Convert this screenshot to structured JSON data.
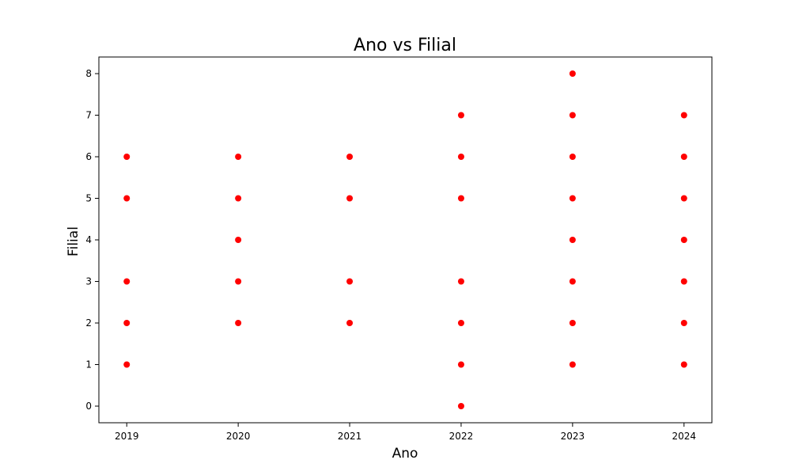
{
  "chart_data": {
    "type": "scatter",
    "title": "Ano vs Filial",
    "xlabel": "Ano",
    "ylabel": "Filial",
    "x_ticks": [
      "2019",
      "2020",
      "2021",
      "2022",
      "2023",
      "2024"
    ],
    "y_ticks": [
      "0",
      "1",
      "2",
      "3",
      "4",
      "5",
      "6",
      "7",
      "8"
    ],
    "xlim": [
      2018.75,
      2024.25
    ],
    "ylim": [
      -0.4,
      8.4
    ],
    "grid": false,
    "color": "#ff0000",
    "points": [
      {
        "x": 2019,
        "y": 1
      },
      {
        "x": 2019,
        "y": 2
      },
      {
        "x": 2019,
        "y": 3
      },
      {
        "x": 2019,
        "y": 5
      },
      {
        "x": 2019,
        "y": 6
      },
      {
        "x": 2020,
        "y": 2
      },
      {
        "x": 2020,
        "y": 3
      },
      {
        "x": 2020,
        "y": 4
      },
      {
        "x": 2020,
        "y": 5
      },
      {
        "x": 2020,
        "y": 6
      },
      {
        "x": 2021,
        "y": 2
      },
      {
        "x": 2021,
        "y": 3
      },
      {
        "x": 2021,
        "y": 5
      },
      {
        "x": 2021,
        "y": 6
      },
      {
        "x": 2022,
        "y": 0
      },
      {
        "x": 2022,
        "y": 1
      },
      {
        "x": 2022,
        "y": 2
      },
      {
        "x": 2022,
        "y": 3
      },
      {
        "x": 2022,
        "y": 5
      },
      {
        "x": 2022,
        "y": 6
      },
      {
        "x": 2022,
        "y": 7
      },
      {
        "x": 2023,
        "y": 1
      },
      {
        "x": 2023,
        "y": 2
      },
      {
        "x": 2023,
        "y": 3
      },
      {
        "x": 2023,
        "y": 4
      },
      {
        "x": 2023,
        "y": 5
      },
      {
        "x": 2023,
        "y": 6
      },
      {
        "x": 2023,
        "y": 7
      },
      {
        "x": 2023,
        "y": 8
      },
      {
        "x": 2024,
        "y": 1
      },
      {
        "x": 2024,
        "y": 2
      },
      {
        "x": 2024,
        "y": 3
      },
      {
        "x": 2024,
        "y": 4
      },
      {
        "x": 2024,
        "y": 5
      },
      {
        "x": 2024,
        "y": 6
      },
      {
        "x": 2024,
        "y": 7
      }
    ]
  }
}
